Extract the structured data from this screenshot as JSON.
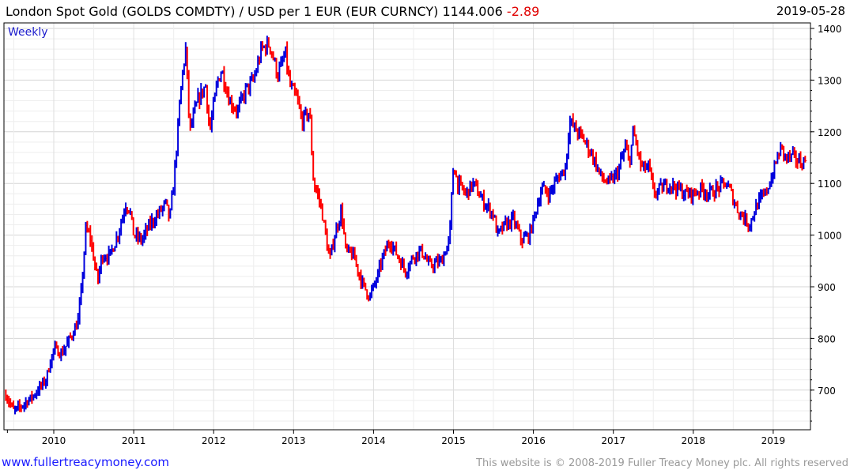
{
  "header": {
    "title": "London Spot Gold (GOLDS COMDTY) / USD per 1 EUR (EUR CURNCY)",
    "last_value": "1144.006",
    "change": "-2.89",
    "date": "2019-05-28"
  },
  "footer": {
    "site_link": "www.fullertreacymoney.com",
    "copyright": "This website is © 2008-2019 Fuller Treacy Money plc. All rights reserved"
  },
  "colors": {
    "up": "#0000dd",
    "down": "#ff0000",
    "grid": "#e3e3e3"
  },
  "chart_data": {
    "type": "ohlc",
    "frequency_label": "Weekly",
    "x_range": [
      2009.35,
      2019.5
    ],
    "ylim": [
      630,
      1410
    ],
    "y_ticks": [
      700,
      800,
      900,
      1000,
      1100,
      1200,
      1300,
      1400
    ],
    "x_ticks": [
      2010,
      2011,
      2012,
      2013,
      2014,
      2015,
      2016,
      2017,
      2018,
      2019
    ],
    "grid": true,
    "y_axis_side": "right",
    "approx_close_path": [
      [
        2009.4,
        690
      ],
      [
        2009.5,
        660
      ],
      [
        2009.6,
        670
      ],
      [
        2009.75,
        690
      ],
      [
        2009.9,
        720
      ],
      [
        2010.0,
        780
      ],
      [
        2010.1,
        770
      ],
      [
        2010.2,
        800
      ],
      [
        2010.3,
        830
      ],
      [
        2010.35,
        900
      ],
      [
        2010.4,
        1010
      ],
      [
        2010.45,
        1000
      ],
      [
        2010.55,
        910
      ],
      [
        2010.6,
        960
      ],
      [
        2010.7,
        960
      ],
      [
        2010.8,
        1000
      ],
      [
        2010.9,
        1060
      ],
      [
        2010.95,
        1050
      ],
      [
        2011.0,
        1000
      ],
      [
        2011.1,
        990
      ],
      [
        2011.2,
        1020
      ],
      [
        2011.3,
        1040
      ],
      [
        2011.4,
        1060
      ],
      [
        2011.45,
        1030
      ],
      [
        2011.5,
        1100
      ],
      [
        2011.55,
        1200
      ],
      [
        2011.6,
        1300
      ],
      [
        2011.65,
        1360
      ],
      [
        2011.7,
        1200
      ],
      [
        2011.8,
        1260
      ],
      [
        2011.9,
        1290
      ],
      [
        2011.95,
        1200
      ],
      [
        2012.05,
        1300
      ],
      [
        2012.1,
        1320
      ],
      [
        2012.2,
        1260
      ],
      [
        2012.3,
        1240
      ],
      [
        2012.4,
        1280
      ],
      [
        2012.5,
        1300
      ],
      [
        2012.6,
        1360
      ],
      [
        2012.7,
        1370
      ],
      [
        2012.8,
        1310
      ],
      [
        2012.9,
        1350
      ],
      [
        2012.95,
        1290
      ],
      [
        2013.05,
        1260
      ],
      [
        2013.1,
        1220
      ],
      [
        2013.2,
        1240
      ],
      [
        2013.25,
        1100
      ],
      [
        2013.3,
        1080
      ],
      [
        2013.35,
        1050
      ],
      [
        2013.45,
        950
      ],
      [
        2013.5,
        990
      ],
      [
        2013.6,
        1050
      ],
      [
        2013.65,
        970
      ],
      [
        2013.75,
        960
      ],
      [
        2013.85,
        910
      ],
      [
        2013.95,
        880
      ],
      [
        2014.05,
        920
      ],
      [
        2014.1,
        950
      ],
      [
        2014.2,
        990
      ],
      [
        2014.3,
        960
      ],
      [
        2014.4,
        930
      ],
      [
        2014.5,
        960
      ],
      [
        2014.6,
        970
      ],
      [
        2014.7,
        940
      ],
      [
        2014.85,
        950
      ],
      [
        2014.95,
        990
      ],
      [
        2015.0,
        1140
      ],
      [
        2015.05,
        1100
      ],
      [
        2015.15,
        1080
      ],
      [
        2015.25,
        1100
      ],
      [
        2015.35,
        1070
      ],
      [
        2015.5,
        1040
      ],
      [
        2015.55,
        1000
      ],
      [
        2015.65,
        1020
      ],
      [
        2015.75,
        1030
      ],
      [
        2015.85,
        990
      ],
      [
        2015.95,
        1000
      ],
      [
        2016.1,
        1090
      ],
      [
        2016.2,
        1080
      ],
      [
        2016.3,
        1110
      ],
      [
        2016.4,
        1130
      ],
      [
        2016.45,
        1220
      ],
      [
        2016.55,
        1200
      ],
      [
        2016.65,
        1180
      ],
      [
        2016.75,
        1150
      ],
      [
        2016.85,
        1110
      ],
      [
        2016.95,
        1100
      ],
      [
        2017.05,
        1120
      ],
      [
        2017.15,
        1170
      ],
      [
        2017.2,
        1140
      ],
      [
        2017.25,
        1200
      ],
      [
        2017.35,
        1130
      ],
      [
        2017.45,
        1130
      ],
      [
        2017.5,
        1080
      ],
      [
        2017.6,
        1090
      ],
      [
        2017.7,
        1100
      ],
      [
        2017.8,
        1090
      ],
      [
        2017.9,
        1080
      ],
      [
        2018.0,
        1080
      ],
      [
        2018.1,
        1090
      ],
      [
        2018.2,
        1080
      ],
      [
        2018.3,
        1090
      ],
      [
        2018.4,
        1100
      ],
      [
        2018.45,
        1090
      ],
      [
        2018.5,
        1070
      ],
      [
        2018.55,
        1050
      ],
      [
        2018.65,
        1030
      ],
      [
        2018.7,
        1020
      ],
      [
        2018.8,
        1060
      ],
      [
        2018.9,
        1080
      ],
      [
        2019.0,
        1120
      ],
      [
        2019.05,
        1150
      ],
      [
        2019.1,
        1170
      ],
      [
        2019.15,
        1150
      ],
      [
        2019.25,
        1150
      ],
      [
        2019.35,
        1140
      ],
      [
        2019.41,
        1144
      ]
    ]
  }
}
